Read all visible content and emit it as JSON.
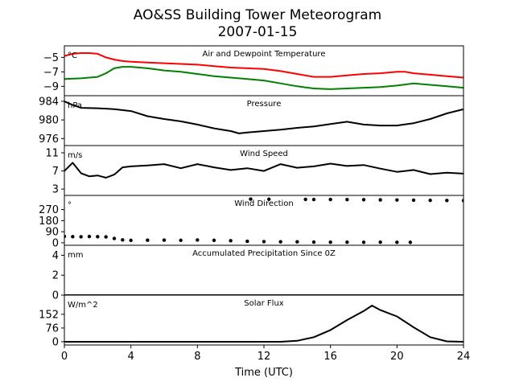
{
  "chart_data": {
    "title_line1": "AO&SS Building Tower Meteorogram",
    "title_line2": "2007-01-15",
    "x_axis": {
      "label": "Time (UTC)",
      "range": [
        0,
        24
      ],
      "ticks": [
        0,
        4,
        8,
        12,
        16,
        20,
        24
      ],
      "tick_labels": [
        "0",
        "4",
        "8",
        "12",
        "16",
        "20",
        "24"
      ]
    },
    "panels": [
      {
        "id": "temperature",
        "title": "Air and Dewpoint Temperature",
        "unit": "°C",
        "type": "line",
        "ylim": [
          -10.3,
          -3.4
        ],
        "yticks": [
          -5,
          -7,
          -9
        ],
        "ytick_labels": [
          "−5",
          "−7",
          "−9"
        ],
        "series": [
          {
            "color": "#ff0000",
            "points": [
              [
                0,
                -4.8
              ],
              [
                0.5,
                -4.5
              ],
              [
                1,
                -4.4
              ],
              [
                1.5,
                -4.4
              ],
              [
                2,
                -4.5
              ],
              [
                2.5,
                -5.0
              ],
              [
                3,
                -5.3
              ],
              [
                3.5,
                -5.5
              ],
              [
                4,
                -5.6
              ],
              [
                5,
                -5.7
              ],
              [
                6,
                -5.8
              ],
              [
                7,
                -5.9
              ],
              [
                8,
                -6.0
              ],
              [
                9,
                -6.2
              ],
              [
                10,
                -6.4
              ],
              [
                11,
                -6.5
              ],
              [
                12,
                -6.6
              ],
              [
                13,
                -6.9
              ],
              [
                14,
                -7.3
              ],
              [
                15,
                -7.7
              ],
              [
                16,
                -7.7
              ],
              [
                17,
                -7.5
              ],
              [
                18,
                -7.3
              ],
              [
                19,
                -7.2
              ],
              [
                20,
                -7.0
              ],
              [
                20.5,
                -7.0
              ],
              [
                21,
                -7.2
              ],
              [
                22,
                -7.4
              ],
              [
                23,
                -7.6
              ],
              [
                24,
                -7.8
              ]
            ]
          },
          {
            "color": "#008000",
            "points": [
              [
                0,
                -8.0
              ],
              [
                1,
                -7.9
              ],
              [
                1.5,
                -7.8
              ],
              [
                2,
                -7.7
              ],
              [
                2.5,
                -7.2
              ],
              [
                3,
                -6.5
              ],
              [
                3.5,
                -6.3
              ],
              [
                4,
                -6.3
              ],
              [
                5,
                -6.5
              ],
              [
                6,
                -6.8
              ],
              [
                7,
                -7.0
              ],
              [
                8,
                -7.3
              ],
              [
                9,
                -7.6
              ],
              [
                10,
                -7.8
              ],
              [
                11,
                -8.0
              ],
              [
                12,
                -8.2
              ],
              [
                13,
                -8.6
              ],
              [
                14,
                -9.0
              ],
              [
                15,
                -9.3
              ],
              [
                16,
                -9.4
              ],
              [
                17,
                -9.3
              ],
              [
                18,
                -9.2
              ],
              [
                19,
                -9.1
              ],
              [
                20,
                -8.9
              ],
              [
                21,
                -8.6
              ],
              [
                22,
                -8.8
              ],
              [
                23,
                -9.0
              ],
              [
                24,
                -9.2
              ]
            ]
          }
        ]
      },
      {
        "id": "pressure",
        "title": "Pressure",
        "unit": "hPa",
        "type": "line",
        "ylim": [
          974.5,
          985.2
        ],
        "yticks": [
          984,
          980,
          976
        ],
        "ytick_labels": [
          "984",
          "980",
          "976"
        ],
        "series": [
          {
            "color": "#000000",
            "points": [
              [
                0,
                984.0
              ],
              [
                0.5,
                983.2
              ],
              [
                1,
                982.6
              ],
              [
                2,
                982.5
              ],
              [
                3,
                982.3
              ],
              [
                4,
                981.9
              ],
              [
                5,
                980.8
              ],
              [
                6,
                980.2
              ],
              [
                7,
                979.7
              ],
              [
                8,
                979.0
              ],
              [
                9,
                978.2
              ],
              [
                10,
                977.6
              ],
              [
                10.5,
                977.1
              ],
              [
                11,
                977.3
              ],
              [
                12,
                977.6
              ],
              [
                13,
                977.9
              ],
              [
                14,
                978.3
              ],
              [
                15,
                978.6
              ],
              [
                16,
                979.1
              ],
              [
                17,
                979.6
              ],
              [
                18,
                979.0
              ],
              [
                19,
                978.8
              ],
              [
                20,
                978.8
              ],
              [
                21,
                979.3
              ],
              [
                22,
                980.2
              ],
              [
                23,
                981.4
              ],
              [
                24,
                982.3
              ]
            ]
          }
        ]
      },
      {
        "id": "wind_speed",
        "title": "Wind Speed",
        "unit": "m/s",
        "type": "line",
        "ylim": [
          1.6,
          12.6
        ],
        "yticks": [
          11,
          7,
          3
        ],
        "ytick_labels": [
          "11",
          "7",
          "3"
        ],
        "series": [
          {
            "color": "#000000",
            "points": [
              [
                0,
                7.0
              ],
              [
                0.5,
                8.8
              ],
              [
                1,
                6.5
              ],
              [
                1.5,
                5.8
              ],
              [
                2,
                6.0
              ],
              [
                2.5,
                5.5
              ],
              [
                3,
                6.2
              ],
              [
                3.5,
                7.8
              ],
              [
                4,
                8.0
              ],
              [
                5,
                8.2
              ],
              [
                6,
                8.5
              ],
              [
                7,
                7.6
              ],
              [
                8,
                8.5
              ],
              [
                9,
                7.8
              ],
              [
                10,
                7.2
              ],
              [
                11,
                7.6
              ],
              [
                12,
                7.0
              ],
              [
                13,
                8.5
              ],
              [
                14,
                7.7
              ],
              [
                15,
                8.0
              ],
              [
                16,
                8.6
              ],
              [
                17,
                8.1
              ],
              [
                18,
                8.3
              ],
              [
                19,
                7.5
              ],
              [
                20,
                6.8
              ],
              [
                21,
                7.2
              ],
              [
                22,
                6.3
              ],
              [
                23,
                6.6
              ],
              [
                24,
                6.4
              ]
            ]
          }
        ]
      },
      {
        "id": "wind_direction",
        "title": "Wind Direction",
        "unit": "°",
        "type": "scatter",
        "ylim": [
          -20,
          385
        ],
        "yticks": [
          270,
          180,
          90,
          0
        ],
        "ytick_labels": [
          "270",
          "180",
          "90",
          "0"
        ],
        "series": [
          {
            "color": "#000000",
            "points": [
              [
                0,
                52
              ],
              [
                0.5,
                50
              ],
              [
                1,
                49
              ],
              [
                1.5,
                51
              ],
              [
                2,
                50
              ],
              [
                2.5,
                48
              ],
              [
                3,
                35
              ],
              [
                3.5,
                24
              ],
              [
                4,
                20
              ],
              [
                5,
                21
              ],
              [
                6,
                22
              ],
              [
                7,
                20
              ],
              [
                8,
                23
              ],
              [
                9,
                20
              ],
              [
                10,
                17
              ],
              [
                11,
                12
              ],
              [
                12,
                10
              ],
              [
                13,
                8
              ],
              [
                14,
                8
              ],
              [
                15,
                6
              ],
              [
                16,
                5
              ],
              [
                17,
                5
              ],
              [
                18,
                4
              ],
              [
                19,
                5
              ],
              [
                20,
                4
              ],
              [
                20.8,
                4
              ],
              [
                11.2,
                355
              ],
              [
                12.3,
                354
              ],
              [
                14.5,
                353
              ],
              [
                15,
                352
              ],
              [
                16,
                352
              ],
              [
                17,
                351
              ],
              [
                18,
                350
              ],
              [
                19,
                349
              ],
              [
                20,
                348
              ],
              [
                21,
                346
              ],
              [
                22,
                345
              ],
              [
                23,
                344
              ],
              [
                24,
                343
              ]
            ]
          }
        ]
      },
      {
        "id": "precipitation",
        "title": "Accumulated Precipitation Since 0Z",
        "unit": "mm",
        "type": "line",
        "ylim": [
          0,
          5
        ],
        "yticks": [
          4,
          2,
          0
        ],
        "ytick_labels": [
          "4",
          "2",
          "0"
        ],
        "series": [
          {
            "color": "#000000",
            "points": [
              [
                0,
                0
              ],
              [
                24,
                0
              ]
            ]
          }
        ]
      },
      {
        "id": "solar_flux",
        "title": "Solar Flux",
        "unit": "W/m^2",
        "type": "line",
        "ylim": [
          -18,
          258
        ],
        "yticks": [
          152,
          76,
          0
        ],
        "ytick_labels": [
          "152",
          "76",
          "0"
        ],
        "series": [
          {
            "color": "#000000",
            "points": [
              [
                0,
                0
              ],
              [
                13,
                0
              ],
              [
                14,
                5
              ],
              [
                15,
                25
              ],
              [
                16,
                65
              ],
              [
                17,
                120
              ],
              [
                18,
                170
              ],
              [
                18.5,
                200
              ],
              [
                19,
                175
              ],
              [
                20,
                140
              ],
              [
                21,
                80
              ],
              [
                22,
                25
              ],
              [
                23,
                2
              ],
              [
                24,
                0
              ]
            ]
          }
        ]
      }
    ]
  }
}
